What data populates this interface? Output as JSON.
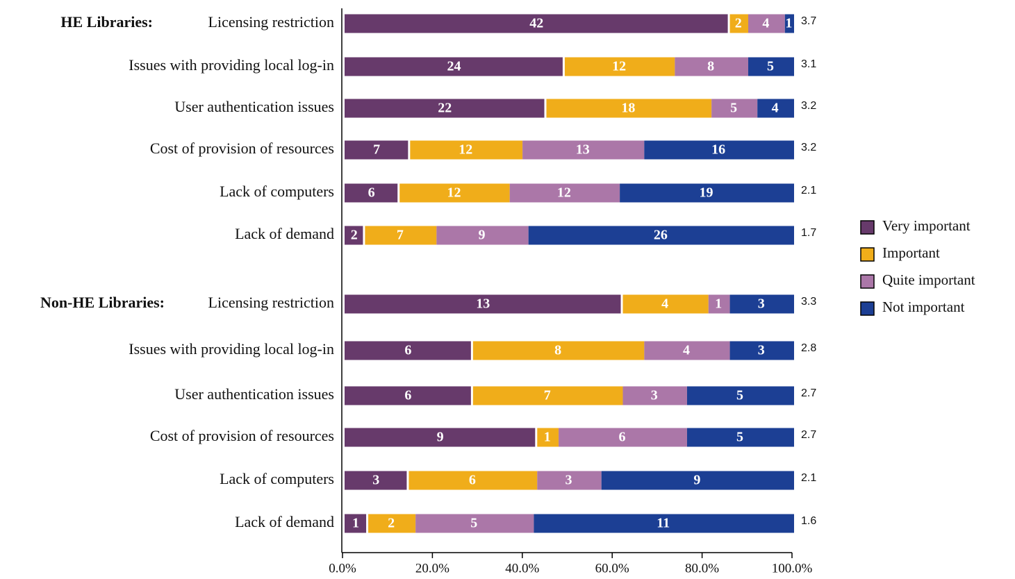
{
  "chart_data": {
    "type": "bar",
    "orientation": "horizontal",
    "stack": "percent",
    "groups": [
      {
        "label": "HE Libraries:",
        "categories": [
          "Licensing restriction",
          "Issues with providing local log-in",
          "User authentication issues",
          "Cost of provision of resources",
          "Lack of computers",
          "Lack of demand"
        ],
        "scores": [
          3.7,
          3.1,
          3.2,
          3.2,
          2.1,
          1.7
        ]
      },
      {
        "label": "Non-HE Libraries:",
        "categories": [
          "Licensing restriction",
          "Issues with providing local log-in",
          "User authentication issues",
          "Cost of provision of resources",
          "Lack of computers",
          "Lack of demand"
        ],
        "scores": [
          3.3,
          2.8,
          2.7,
          2.7,
          2.1,
          1.6
        ]
      }
    ],
    "series": [
      {
        "name": "Very important",
        "color": "#673a6b",
        "values": [
          42,
          24,
          22,
          7,
          6,
          2,
          13,
          6,
          6,
          9,
          3,
          1
        ]
      },
      {
        "name": "Important",
        "color": "#f0ad1a",
        "values": [
          2,
          12,
          18,
          12,
          12,
          7,
          4,
          8,
          7,
          1,
          6,
          2
        ]
      },
      {
        "name": "Quite important",
        "color": "#ab77a8",
        "values": [
          4,
          8,
          5,
          13,
          12,
          9,
          1,
          4,
          3,
          6,
          3,
          5
        ]
      },
      {
        "name": "Not important",
        "color": "#1c3f94",
        "values": [
          1,
          5,
          4,
          16,
          19,
          26,
          3,
          3,
          5,
          5,
          9,
          11
        ]
      }
    ],
    "xlim": [
      0,
      100
    ],
    "xticks": [
      {
        "value": 0,
        "label": "0.0%"
      },
      {
        "value": 20,
        "label": "20.0%"
      },
      {
        "value": 40,
        "label": "40.0%"
      },
      {
        "value": 60,
        "label": "60.0%"
      },
      {
        "value": 80,
        "label": "80.0%"
      },
      {
        "value": 100,
        "label": "100.0%"
      }
    ],
    "legend": "right"
  }
}
